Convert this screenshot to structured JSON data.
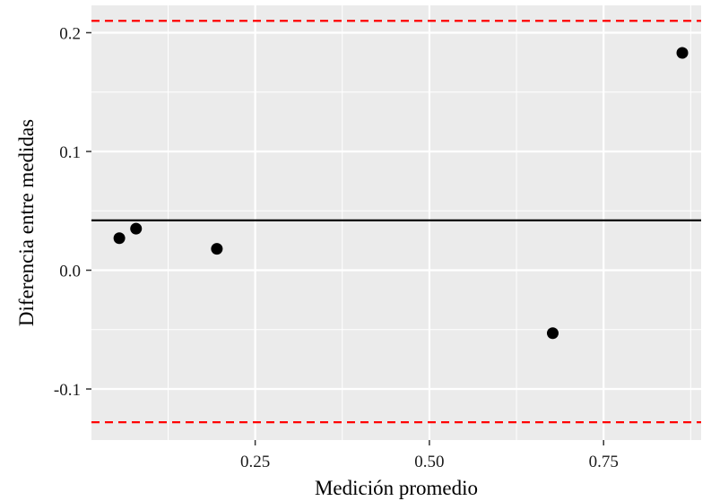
{
  "chart_data": {
    "type": "scatter",
    "title": "",
    "xlabel": "Medición promedio",
    "ylabel": "Diferencia entre medidas",
    "xlim": [
      0.015,
      0.89
    ],
    "ylim": [
      -0.143,
      0.223
    ],
    "x_ticks": [
      {
        "value": 0.25,
        "label": "0.25"
      },
      {
        "value": 0.5,
        "label": "0.50"
      },
      {
        "value": 0.75,
        "label": "0.75"
      }
    ],
    "x_minor_ticks": [
      0.125,
      0.375,
      0.625,
      0.875
    ],
    "y_ticks": [
      {
        "value": -0.1,
        "label": "-0.1"
      },
      {
        "value": 0.0,
        "label": "0.0"
      },
      {
        "value": 0.1,
        "label": "0.1"
      },
      {
        "value": 0.2,
        "label": "0.2"
      }
    ],
    "y_minor_ticks": [
      -0.05,
      0.05,
      0.15
    ],
    "points": [
      {
        "x": 0.055,
        "y": 0.027
      },
      {
        "x": 0.079,
        "y": 0.035
      },
      {
        "x": 0.195,
        "y": 0.018
      },
      {
        "x": 0.677,
        "y": -0.053
      },
      {
        "x": 0.863,
        "y": 0.183
      }
    ],
    "reference_lines": [
      {
        "name": "mean",
        "y": 0.042,
        "color": "#000000",
        "dashed": false
      },
      {
        "name": "upper",
        "y": 0.21,
        "color": "#ff0000",
        "dashed": true
      },
      {
        "name": "lower",
        "y": -0.128,
        "color": "#ff0000",
        "dashed": true
      }
    ],
    "grid": true,
    "colors": {
      "panel": "#ebebeb",
      "grid": "#ffffff",
      "point": "#000000"
    }
  }
}
